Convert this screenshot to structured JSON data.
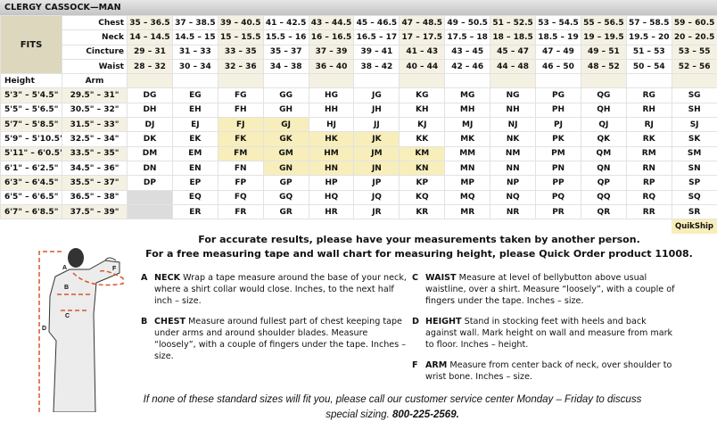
{
  "title": "CLERGY CASSOCK—MAN",
  "fits_label": "FITS",
  "fit_rows": [
    {
      "label": "Chest",
      "values": [
        "35 – 36.5",
        "37 – 38.5",
        "39 – 40.5",
        "41 – 42.5",
        "43 – 44.5",
        "45 – 46.5",
        "47 – 48.5",
        "49 – 50.5",
        "51 – 52.5",
        "53 – 54.5",
        "55 – 56.5",
        "57 – 58.5",
        "59 – 60.5"
      ]
    },
    {
      "label": "Neck",
      "values": [
        "14 – 14.5",
        "14.5 – 15",
        "15 – 15.5",
        "15.5 – 16",
        "16 – 16.5",
        "16.5 – 17",
        "17 – 17.5",
        "17.5 – 18",
        "18 – 18.5",
        "18.5 – 19",
        "19 – 19.5",
        "19.5 – 20",
        "20 – 20.5"
      ]
    },
    {
      "label": "Cincture",
      "values": [
        "29 – 31",
        "31 – 33",
        "33 – 35",
        "35 – 37",
        "37 – 39",
        "39 – 41",
        "41 – 43",
        "43 – 45",
        "45 – 47",
        "47 – 49",
        "49 – 51",
        "51 – 53",
        "53 – 55"
      ]
    },
    {
      "label": "Waist",
      "values": [
        "28 – 32",
        "30 – 34",
        "32 – 36",
        "34 – 38",
        "36 – 40",
        "38 – 42",
        "40 – 44",
        "42 – 46",
        "44 – 48",
        "46 – 50",
        "48 – 52",
        "50 – 54",
        "52 – 56"
      ]
    }
  ],
  "height_header": "Height",
  "arm_header": "Arm",
  "size_rows": [
    {
      "height": "5'3\" – 5'4.5\"",
      "arm": "29.5\" – 31\"",
      "sizes": [
        "DG",
        "EG",
        "FG",
        "GG",
        "HG",
        "JG",
        "KG",
        "MG",
        "NG",
        "PG",
        "QG",
        "RG",
        "SG"
      ]
    },
    {
      "height": "5'5\" – 5'6.5\"",
      "arm": "30.5\" – 32\"",
      "sizes": [
        "DH",
        "EH",
        "FH",
        "GH",
        "HH",
        "JH",
        "KH",
        "MH",
        "NH",
        "PH",
        "QH",
        "RH",
        "SH"
      ]
    },
    {
      "height": "5'7\" – 5'8.5\"",
      "arm": "31.5\" – 33\"",
      "sizes": [
        "DJ",
        "EJ",
        "FJ",
        "GJ",
        "HJ",
        "JJ",
        "KJ",
        "MJ",
        "NJ",
        "PJ",
        "QJ",
        "RJ",
        "SJ"
      ]
    },
    {
      "height": "5'9\" – 5'10.5\"",
      "arm": "32.5\" – 34\"",
      "sizes": [
        "DK",
        "EK",
        "FK",
        "GK",
        "HK",
        "JK",
        "KK",
        "MK",
        "NK",
        "PK",
        "QK",
        "RK",
        "SK"
      ]
    },
    {
      "height": "5'11\" – 6'0.5\"",
      "arm": "33.5\" – 35\"",
      "sizes": [
        "DM",
        "EM",
        "FM",
        "GM",
        "HM",
        "JM",
        "KM",
        "MM",
        "NM",
        "PM",
        "QM",
        "RM",
        "SM"
      ]
    },
    {
      "height": "6'1\" – 6'2.5\"",
      "arm": "34.5\" – 36\"",
      "sizes": [
        "DN",
        "EN",
        "FN",
        "GN",
        "HN",
        "JN",
        "KN",
        "MN",
        "NN",
        "PN",
        "QN",
        "RN",
        "SN"
      ]
    },
    {
      "height": "6'3\" – 6'4.5\"",
      "arm": "35.5\" – 37\"",
      "sizes": [
        "DP",
        "EP",
        "FP",
        "GP",
        "HP",
        "JP",
        "KP",
        "MP",
        "NP",
        "PP",
        "QP",
        "RP",
        "SP"
      ]
    },
    {
      "height": "6'5\" – 6'6.5\"",
      "arm": "36.5\" – 38\"",
      "sizes": [
        "",
        "EQ",
        "FQ",
        "GQ",
        "HQ",
        "JQ",
        "KQ",
        "MQ",
        "NQ",
        "PQ",
        "QQ",
        "RQ",
        "SQ"
      ]
    },
    {
      "height": "6'7\" – 6'8.5\"",
      "arm": "37.5\" – 39\"",
      "sizes": [
        "",
        "ER",
        "FR",
        "GR",
        "HR",
        "JR",
        "KR",
        "MR",
        "NR",
        "PR",
        "QR",
        "RR",
        "SR"
      ]
    }
  ],
  "quikship_sizes": [
    "FJ",
    "GJ",
    "FK",
    "GK",
    "HK",
    "JK",
    "FM",
    "GM",
    "HM",
    "JM",
    "KM",
    "GN",
    "HN",
    "JN",
    "KN"
  ],
  "quikship_label": "QuikShip",
  "colors": {
    "quikship": "#f8eebb",
    "beige": "#f4f1e3",
    "fits": "#ddd7bd",
    "measure_line": "#d9572b"
  },
  "intro": [
    "For accurate results, please have your measurements taken by another person.",
    "For a free measuring tape and wall chart for measuring height, please Quick Order product 11008."
  ],
  "figure_labels": [
    "A",
    "B",
    "C",
    "D",
    "F"
  ],
  "instructions": [
    {
      "letter": "A",
      "title": "NECK",
      "text": "Wrap a tape measure around the base of your neck, where a shirt collar would close. Inches, to the next half inch – size."
    },
    {
      "letter": "B",
      "title": "CHEST",
      "text": "Measure around fullest part of chest keeping tape under arms and around shoulder blades. Measure “loosely”, with a couple of fingers under the tape. Inches – size."
    },
    {
      "letter": "C",
      "title": "WAIST",
      "text": "Measure at level of bellybutton above usual waistline, over a shirt. Measure “loosely”, with a couple of fingers under the tape. Inches – size."
    },
    {
      "letter": "D",
      "title": "HEIGHT",
      "text": "Stand in stocking feet with heels and back against wall. Mark height on wall and measure from mark to floor. Inches – height."
    },
    {
      "letter": "F",
      "title": "ARM",
      "text": "Measure from center back of neck, over shoulder to wrist bone. Inches – size."
    }
  ],
  "footer": {
    "text": "If none of these standard sizes will fit you, please call our customer service center Monday – Friday to discuss special sizing.",
    "phone": "800-225-2569."
  }
}
